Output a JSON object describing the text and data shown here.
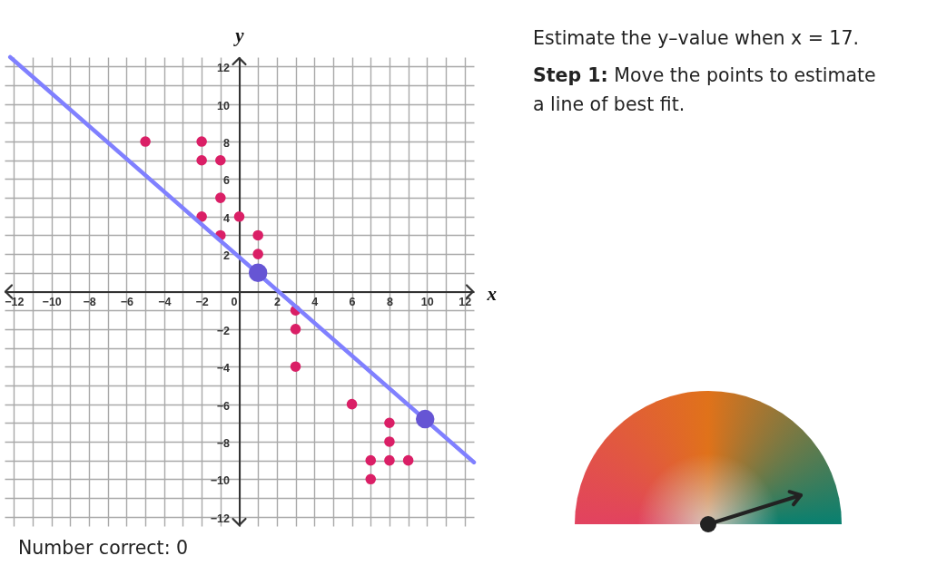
{
  "chart_data": {
    "type": "scatter",
    "xlabel": "x",
    "ylabel": "y",
    "annotations": [
      "Estimate the y–value when x = 17.",
      "Step 1: Move the points to estimate a line of best fit.",
      "Number correct: 0"
    ],
    "xlim": [
      -12.5,
      12.5
    ],
    "ylim": [
      -12.5,
      12.5
    ],
    "xticks": [
      -12,
      {
        "value": -11,
        "label": null
      },
      -10,
      {
        "value": -9,
        "label": null
      },
      -8,
      {
        "value": -7,
        "label": null
      },
      -6,
      {
        "value": -5,
        "label": null
      },
      -4,
      {
        "value": -3,
        "label": null
      },
      -2,
      {
        "value": -1,
        "label": null
      },
      0,
      {
        "value": 1,
        "label": null
      },
      2,
      {
        "value": 3,
        "label": null
      },
      4,
      {
        "value": 5,
        "label": null
      },
      6,
      {
        "value": 7,
        "label": null
      },
      8,
      {
        "value": 9,
        "label": null
      },
      10,
      {
        "value": 11,
        "label": null
      },
      12
    ],
    "yticks": [
      -12,
      {
        "value": -11,
        "label": null
      },
      -10,
      {
        "value": -9,
        "label": null
      },
      -8,
      {
        "value": -7,
        "label": null
      },
      -6,
      {
        "value": -5,
        "label": null
      },
      -4,
      {
        "value": -3,
        "label": null
      },
      -2,
      {
        "value": -1,
        "label": null
      },
      {
        "value": 0,
        "label": null
      },
      {
        "value": 1,
        "label": null
      },
      2,
      {
        "value": 3,
        "label": null
      },
      4,
      {
        "value": 5,
        "label": null
      },
      6,
      {
        "value": 7,
        "label": null
      },
      8,
      {
        "value": 9,
        "label": null
      },
      10,
      {
        "value": 11,
        "label": null
      },
      12
    ],
    "grid": true,
    "marker": "circle",
    "series": [
      {
        "type": "scatter",
        "color": "#da1f66",
        "x": [
          -5,
          -2,
          -2,
          -1,
          -1,
          -2,
          0,
          -1,
          1,
          1,
          3,
          3,
          3,
          6,
          8,
          8,
          7,
          8,
          9,
          7
        ],
        "values": [
          8,
          8,
          7,
          7,
          5,
          4,
          4,
          3,
          3,
          2,
          -1,
          -2,
          -4,
          -6,
          -7,
          -8,
          -9,
          -9,
          -9,
          -10
        ]
      },
      {
        "type": "line",
        "color": "#8080ff",
        "marker": "none",
        "line_style": "solid",
        "x": [
          -12.2,
          12.5
        ],
        "values": [
          12.5,
          -9.1
        ]
      },
      {
        "type": "scatter",
        "color": "#6655d4",
        "x": [
          1,
          9.9
        ],
        "values": [
          1,
          -6.8
        ]
      }
    ]
  }
}
